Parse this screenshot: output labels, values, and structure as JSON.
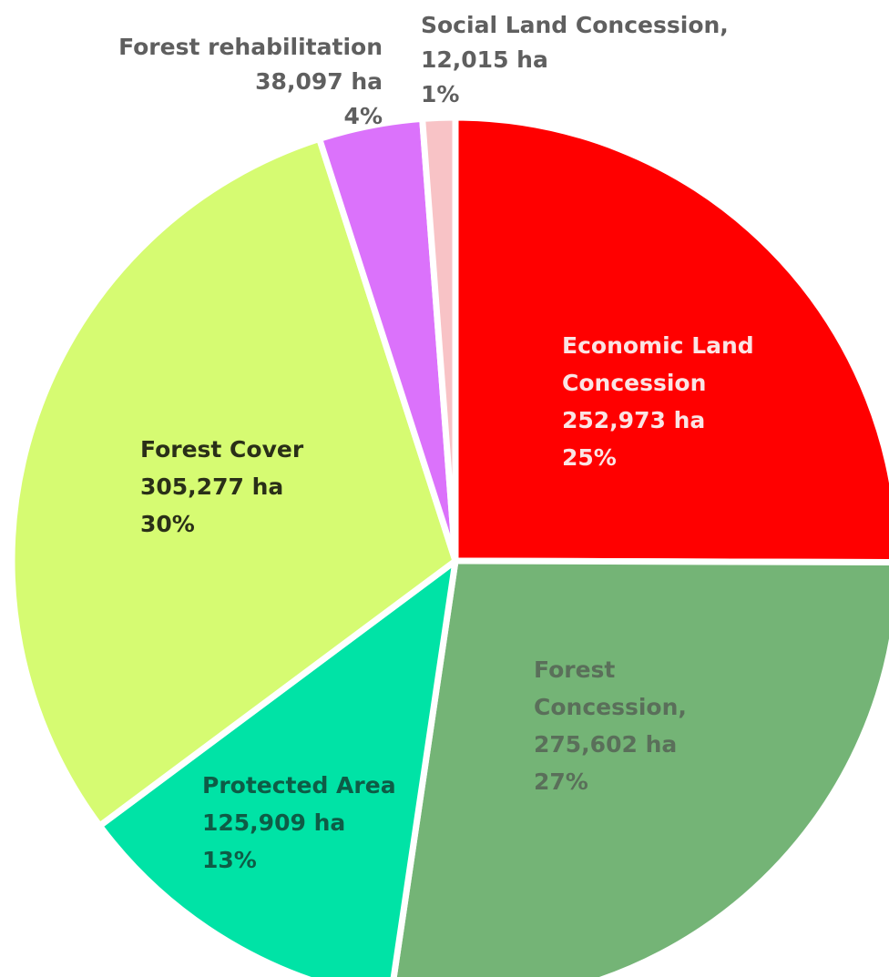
{
  "chart_data": {
    "type": "pie",
    "title": "",
    "slices": [
      {
        "name": "Economic Land Concession",
        "value": 252973,
        "percent": 25,
        "color": "#ff0000",
        "text_color": "#fbe4e4",
        "lines": [
          "Economic Land",
          "Concession",
          "252,973 ha",
          "25%"
        ]
      },
      {
        "name": "Forest Concession",
        "value": 275602,
        "percent": 27,
        "color": "#74b476",
        "text_color": "#5a6f5a",
        "lines": [
          "Forest",
          "Concession,",
          "275,602 ha",
          "27%"
        ]
      },
      {
        "name": "Protected Area",
        "value": 125909,
        "percent": 13,
        "color": "#00e3a6",
        "text_color": "#0e5c46",
        "lines": [
          "Protected Area",
          "125,909 ha",
          "13%"
        ]
      },
      {
        "name": "Forest Cover",
        "value": 305277,
        "percent": 30,
        "color": "#d6fb72",
        "text_color": "#2a2f18",
        "lines": [
          "Forest Cover",
          "305,277 ha",
          "30%"
        ]
      },
      {
        "name": "Forest rehabilitation",
        "value": 38097,
        "percent": 4,
        "color": "#db72fb",
        "text_color": "#5f5f5f",
        "lines": [
          "Forest rehabilitation",
          "38,097 ha",
          "4%"
        ]
      },
      {
        "name": "Social Land Concession",
        "value": 12015,
        "percent": 1,
        "color": "#f8c3c6",
        "text_color": "#5f5f5f",
        "lines": [
          "Social Land Concession,",
          "12,015 ha",
          "1%"
        ]
      }
    ]
  }
}
